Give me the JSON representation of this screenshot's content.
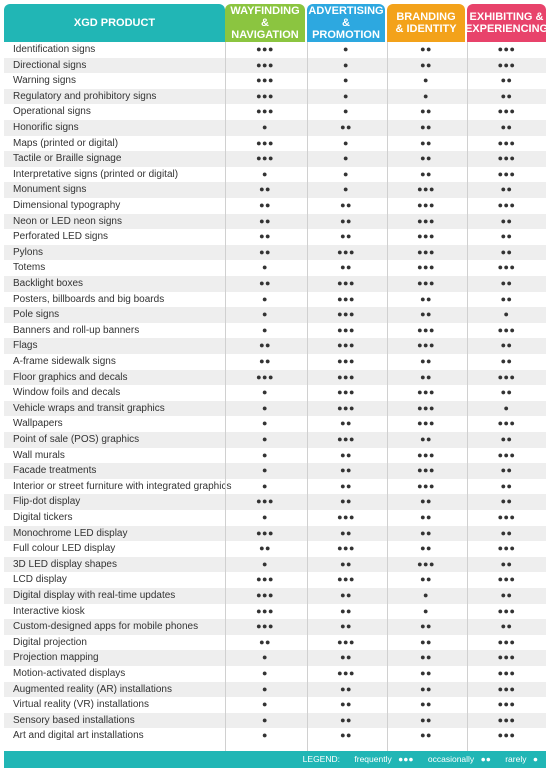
{
  "chart_data": {
    "type": "table",
    "header_product": "XGD PRODUCT",
    "columns": [
      {
        "label": "WAYFINDING\n& NAVIGATION",
        "color": "#8bc540"
      },
      {
        "label": "ADVERTISING\n& PROMOTION",
        "color": "#2da8e0"
      },
      {
        "label": "BRANDING\n& IDENTITY",
        "color": "#f3a21a"
      },
      {
        "label": "EXHIBITING &\nEXPERIENCING",
        "color": "#e8436b"
      }
    ],
    "header_product_color": "#21b6b5",
    "row_stripe_color": "#eeeeee",
    "rows": [
      {
        "label": "Identification signs",
        "values": [
          3,
          1,
          2,
          3
        ]
      },
      {
        "label": "Directional signs",
        "values": [
          3,
          1,
          2,
          3
        ]
      },
      {
        "label": "Warning signs",
        "values": [
          3,
          1,
          1,
          2
        ]
      },
      {
        "label": "Regulatory and prohibitory signs",
        "values": [
          3,
          1,
          1,
          2
        ]
      },
      {
        "label": "Operational signs",
        "values": [
          3,
          1,
          2,
          3
        ]
      },
      {
        "label": "Honorific signs",
        "values": [
          1,
          2,
          2,
          2
        ]
      },
      {
        "label": "Maps (printed or digital)",
        "values": [
          3,
          1,
          2,
          3
        ]
      },
      {
        "label": "Tactile or Braille signage",
        "values": [
          3,
          1,
          2,
          3
        ]
      },
      {
        "label": "Interpretative signs (printed or digital)",
        "values": [
          1,
          1,
          2,
          3
        ]
      },
      {
        "label": "Monument signs",
        "values": [
          2,
          1,
          3,
          2
        ]
      },
      {
        "label": "Dimensional typography",
        "values": [
          2,
          2,
          3,
          3
        ]
      },
      {
        "label": "Neon or LED neon signs",
        "values": [
          2,
          2,
          3,
          2
        ]
      },
      {
        "label": "Perforated LED signs",
        "values": [
          2,
          2,
          3,
          2
        ]
      },
      {
        "label": "Pylons",
        "values": [
          2,
          3,
          3,
          2
        ]
      },
      {
        "label": "Totems",
        "values": [
          1,
          2,
          3,
          3
        ]
      },
      {
        "label": "Backlight boxes",
        "values": [
          2,
          3,
          3,
          2
        ]
      },
      {
        "label": "Posters, billboards and big boards",
        "values": [
          1,
          3,
          2,
          2
        ]
      },
      {
        "label": "Pole signs",
        "values": [
          1,
          3,
          2,
          1
        ]
      },
      {
        "label": "Banners and roll-up banners",
        "values": [
          1,
          3,
          3,
          3
        ]
      },
      {
        "label": "Flags",
        "values": [
          2,
          3,
          3,
          2
        ]
      },
      {
        "label": "A-frame sidewalk signs",
        "values": [
          2,
          3,
          2,
          2
        ]
      },
      {
        "label": "Floor graphics and decals",
        "values": [
          3,
          3,
          2,
          3
        ]
      },
      {
        "label": "Window foils and decals",
        "values": [
          1,
          3,
          3,
          2
        ]
      },
      {
        "label": "Vehicle wraps and transit graphics",
        "values": [
          1,
          3,
          3,
          1
        ]
      },
      {
        "label": "Wallpapers",
        "values": [
          1,
          2,
          3,
          3
        ]
      },
      {
        "label": "Point of sale (POS) graphics",
        "values": [
          1,
          3,
          2,
          2
        ]
      },
      {
        "label": "Wall murals",
        "values": [
          1,
          2,
          3,
          3
        ]
      },
      {
        "label": "Facade treatments",
        "values": [
          1,
          2,
          3,
          2
        ]
      },
      {
        "label": "Interior or street furniture with integrated graphics",
        "values": [
          1,
          2,
          3,
          2
        ]
      },
      {
        "label": "Flip-dot display",
        "values": [
          3,
          2,
          2,
          2
        ]
      },
      {
        "label": "Digital tickers",
        "values": [
          1,
          3,
          2,
          3
        ]
      },
      {
        "label": "Monochrome LED display",
        "values": [
          3,
          2,
          2,
          2
        ]
      },
      {
        "label": "Full colour LED display",
        "values": [
          2,
          3,
          2,
          3
        ]
      },
      {
        "label": "3D LED display shapes",
        "values": [
          1,
          2,
          3,
          2
        ]
      },
      {
        "label": "LCD display",
        "values": [
          3,
          3,
          2,
          3
        ]
      },
      {
        "label": "Digital display with real-time updates",
        "values": [
          3,
          2,
          1,
          2
        ]
      },
      {
        "label": "Interactive kiosk",
        "values": [
          3,
          2,
          1,
          3
        ]
      },
      {
        "label": "Custom-designed apps for mobile phones",
        "values": [
          3,
          2,
          2,
          2
        ]
      },
      {
        "label": "Digital projection",
        "values": [
          2,
          3,
          2,
          3
        ]
      },
      {
        "label": "Projection mapping",
        "values": [
          1,
          2,
          2,
          3
        ]
      },
      {
        "label": "Motion-activated displays",
        "values": [
          1,
          3,
          2,
          3
        ]
      },
      {
        "label": "Augmented reality (AR) installations",
        "values": [
          1,
          2,
          2,
          3
        ]
      },
      {
        "label": "Virtual reality (VR) installations",
        "values": [
          1,
          2,
          2,
          3
        ]
      },
      {
        "label": "Sensory based installations",
        "values": [
          1,
          2,
          2,
          3
        ]
      },
      {
        "label": "Art and digital art installations",
        "values": [
          1,
          2,
          2,
          3
        ]
      }
    ],
    "legend": {
      "title": "LEGEND:",
      "items": [
        {
          "label": "frequently",
          "value": 3
        },
        {
          "label": "occasionally",
          "value": 2
        },
        {
          "label": "rarely",
          "value": 1
        }
      ]
    }
  }
}
